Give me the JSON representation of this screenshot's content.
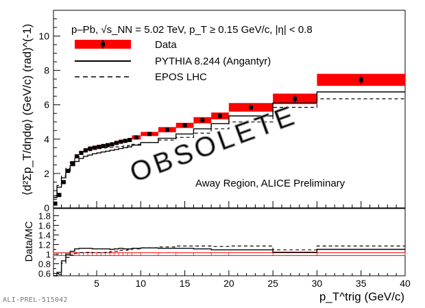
{
  "chart_data": [
    {
      "type": "line",
      "panel": "top",
      "ylabel": "⟨d²Σp_T/dηdφ⟩ (GeV/c) (rad)^(-1)",
      "ylim": [
        0,
        11.5
      ],
      "xlim": [
        0.1,
        40
      ],
      "yticks": [
        0,
        2,
        4,
        6,
        8,
        10
      ],
      "system_text": "p–Pb, √s_NN = 5.02 TeV, p_T ≥ 0.15 GeV/c, |η| < 0.8",
      "annotation": "Away Region, ALICE Preliminary",
      "watermark": "OBSOLETE",
      "legend": [
        "Data",
        "PYTHIA 8.244 (Angantyr)",
        "EPOS LHC"
      ],
      "legend_position": "top-left",
      "bin_edges": [
        0.1,
        0.5,
        1,
        1.5,
        2,
        2.5,
        3,
        3.5,
        4,
        4.5,
        5,
        5.5,
        6,
        6.5,
        7,
        7.5,
        8,
        8.5,
        9,
        10,
        12,
        14,
        16,
        18,
        20,
        25,
        30,
        40
      ],
      "series": [
        {
          "name": "Data",
          "x": [
            0.3,
            0.75,
            1.25,
            1.75,
            2.25,
            2.75,
            3.25,
            3.75,
            4.25,
            4.75,
            5.25,
            5.75,
            6.25,
            6.75,
            7.25,
            7.75,
            8.25,
            8.75,
            9.5,
            11,
            13,
            15,
            17,
            19,
            22.5,
            27.5,
            35
          ],
          "values": [
            0.25,
            0.75,
            1.5,
            2.15,
            2.6,
            3.0,
            3.2,
            3.35,
            3.45,
            3.5,
            3.55,
            3.6,
            3.65,
            3.7,
            3.78,
            3.85,
            3.9,
            3.95,
            4.1,
            4.3,
            4.55,
            4.8,
            5.1,
            5.35,
            5.85,
            6.35,
            7.45
          ],
          "sys_unc": [
            0.08,
            0.1,
            0.1,
            0.1,
            0.1,
            0.1,
            0.1,
            0.1,
            0.1,
            0.1,
            0.1,
            0.1,
            0.1,
            0.1,
            0.1,
            0.1,
            0.1,
            0.1,
            0.12,
            0.12,
            0.15,
            0.15,
            0.18,
            0.2,
            0.25,
            0.3,
            0.35
          ],
          "stat_unc": [
            0.02,
            0.02,
            0.02,
            0.02,
            0.02,
            0.02,
            0.02,
            0.02,
            0.03,
            0.03,
            0.03,
            0.03,
            0.03,
            0.04,
            0.04,
            0.05,
            0.05,
            0.05,
            0.06,
            0.08,
            0.1,
            0.12,
            0.14,
            0.15,
            0.15,
            0.2,
            0.25
          ]
        },
        {
          "name": "PYTHIA 8.244 (Angantyr)",
          "values": [
            0.6,
            1.2,
            1.75,
            2.15,
            2.45,
            2.7,
            2.87,
            3.0,
            3.07,
            3.15,
            3.2,
            3.25,
            3.3,
            3.35,
            3.4,
            3.45,
            3.5,
            3.55,
            3.65,
            3.8,
            4.05,
            4.3,
            4.6,
            4.9,
            5.35,
            6.1,
            6.75
          ]
        },
        {
          "name": "EPOS LHC",
          "values": [
            0.7,
            1.3,
            1.85,
            2.3,
            2.65,
            2.95,
            3.12,
            3.25,
            3.33,
            3.4,
            3.45,
            3.48,
            3.5,
            3.52,
            3.55,
            3.57,
            3.6,
            3.63,
            3.7,
            3.8,
            3.95,
            4.1,
            4.35,
            4.6,
            5.0,
            5.85,
            6.35
          ]
        }
      ]
    },
    {
      "type": "line",
      "panel": "bottom",
      "ylabel": "Data/MC",
      "xlabel": "p_T^trig (GeV/c)",
      "ylim": [
        0.55,
        1.95
      ],
      "xlim": [
        0.1,
        40
      ],
      "yticks": [
        0.6,
        0.8,
        1,
        1.2,
        1.4,
        1.6,
        1.8
      ],
      "xticks": [
        5,
        10,
        15,
        20,
        25,
        30,
        35,
        40
      ],
      "bin_edges": [
        0.1,
        0.5,
        1,
        1.5,
        2,
        2.5,
        3,
        3.5,
        4,
        4.5,
        5,
        5.5,
        6,
        6.5,
        7,
        7.5,
        8,
        8.5,
        9,
        10,
        12,
        14,
        16,
        18,
        20,
        25,
        30,
        40
      ],
      "series": [
        {
          "name": "PYTHIA 8.244 (Angantyr)",
          "values": [
            0.4,
            0.62,
            0.86,
            1.0,
            1.06,
            1.11,
            1.12,
            1.12,
            1.12,
            1.11,
            1.11,
            1.11,
            1.11,
            1.1,
            1.11,
            1.12,
            1.11,
            1.11,
            1.12,
            1.13,
            1.12,
            1.12,
            1.11,
            1.09,
            1.09,
            1.04,
            1.1
          ]
        },
        {
          "name": "EPOS LHC",
          "values": [
            0.36,
            0.58,
            0.81,
            0.93,
            0.98,
            1.02,
            1.03,
            1.03,
            1.04,
            1.03,
            1.03,
            1.03,
            1.04,
            1.05,
            1.06,
            1.08,
            1.08,
            1.09,
            1.11,
            1.13,
            1.15,
            1.17,
            1.17,
            1.16,
            1.17,
            1.09,
            1.17
          ]
        }
      ],
      "unity_band": [
        0.97,
        1.03
      ]
    }
  ],
  "footer": {
    "preliminary_id": "ALI-PREL-515042"
  }
}
